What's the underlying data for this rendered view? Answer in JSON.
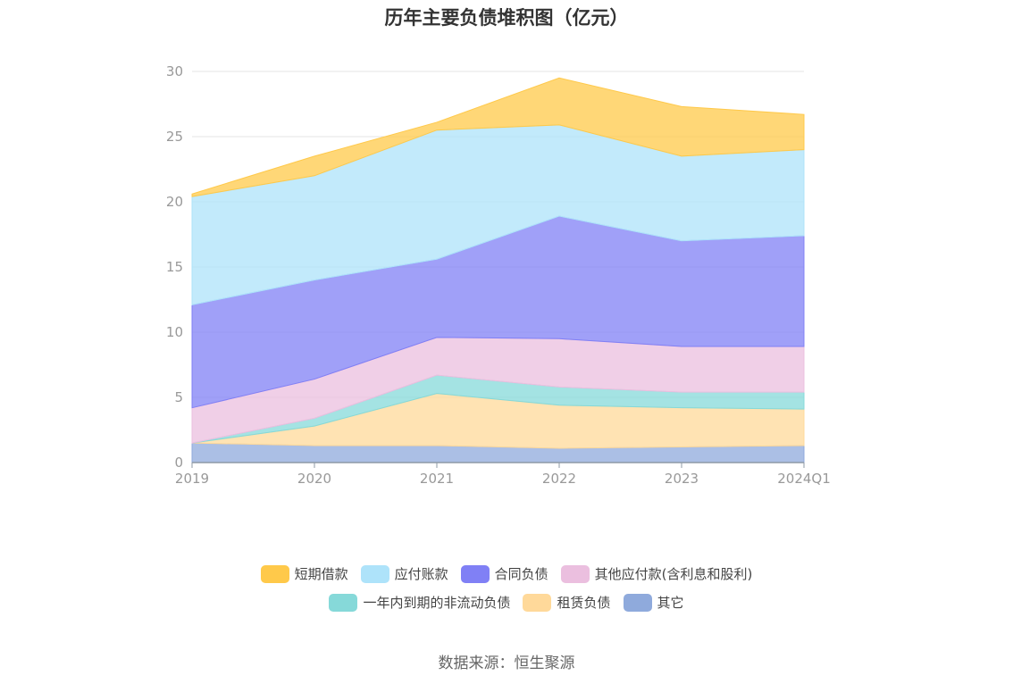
{
  "title": "历年主要负债堆积图（亿元）",
  "source": "数据来源：恒生聚源",
  "chart_data": {
    "type": "area",
    "stacked": true,
    "categories": [
      "2019",
      "2020",
      "2021",
      "2022",
      "2023",
      "2024Q1"
    ],
    "ylim": [
      0,
      30
    ],
    "yticks": [
      0,
      5,
      10,
      15,
      20,
      25,
      30
    ],
    "grid": true,
    "legend_position": "bottom",
    "series": [
      {
        "name": "其它",
        "color": "#8faadc",
        "values": [
          1.5,
          1.3,
          1.3,
          1.1,
          1.2,
          1.3
        ]
      },
      {
        "name": "租赁负债",
        "color": "#ffd99a",
        "values": [
          0.0,
          1.5,
          4.0,
          3.3,
          3.0,
          2.8
        ]
      },
      {
        "name": "一年内到期的非流动负债",
        "color": "#86d9d9",
        "values": [
          0.0,
          0.6,
          1.4,
          1.4,
          1.2,
          1.3
        ]
      },
      {
        "name": "其他应付款(含利息和股利)",
        "color": "#ebbfdf",
        "values": [
          2.7,
          3.0,
          2.9,
          3.7,
          3.5,
          3.5
        ]
      },
      {
        "name": "合同负债",
        "color": "#8080f5",
        "values": [
          7.9,
          7.6,
          6.0,
          9.4,
          8.1,
          8.5
        ]
      },
      {
        "name": "应付账款",
        "color": "#aee3fa",
        "values": [
          8.3,
          8.0,
          9.9,
          7.0,
          6.5,
          6.6
        ]
      },
      {
        "name": "短期借款",
        "color": "#ffc94a",
        "values": [
          0.2,
          1.5,
          0.6,
          3.6,
          3.8,
          2.7
        ]
      }
    ],
    "legend_order": [
      "短期借款",
      "应付账款",
      "合同负债",
      "其他应付款(含利息和股利)",
      "一年内到期的非流动负债",
      "租赁负债",
      "其它"
    ]
  }
}
